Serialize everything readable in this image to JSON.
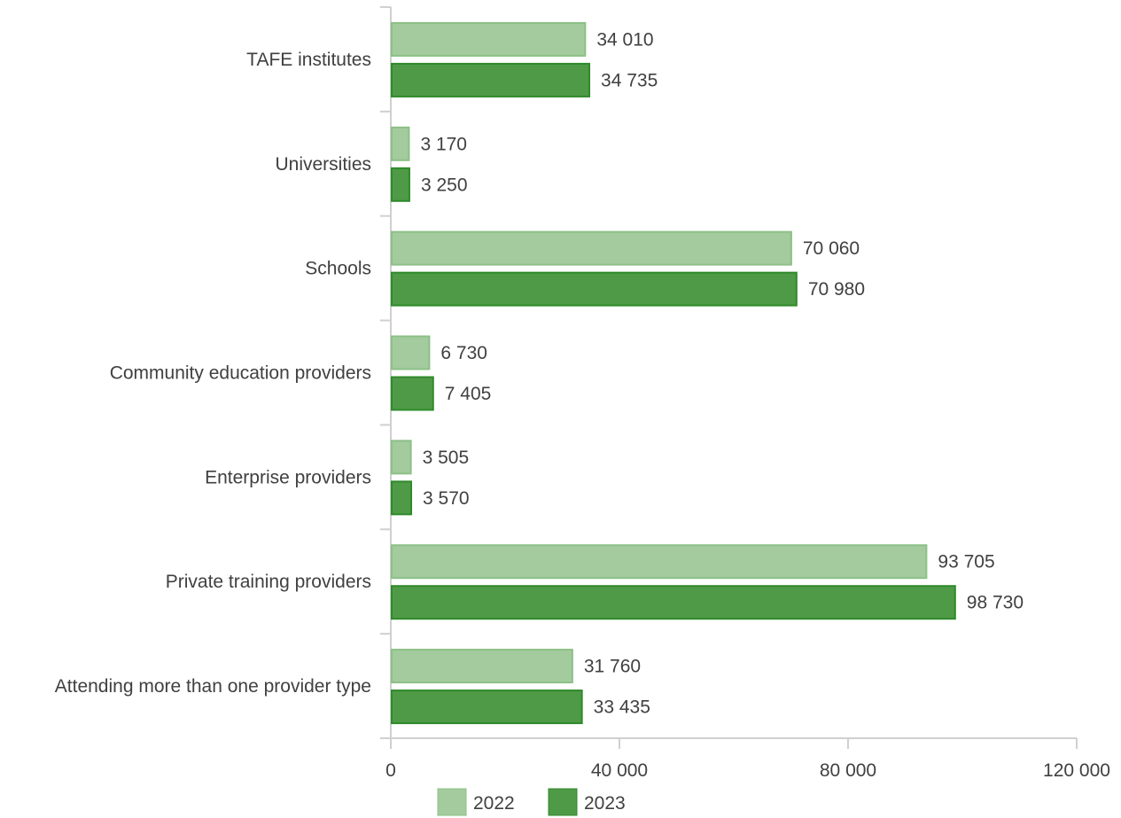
{
  "chart_data": {
    "type": "bar",
    "orientation": "horizontal",
    "categories": [
      "TAFE institutes",
      "Universities",
      "Schools",
      "Community education providers",
      "Enterprise providers",
      "Private training providers",
      "Attending more than one provider type"
    ],
    "series": [
      {
        "name": "2022",
        "values": [
          34010,
          3170,
          70060,
          6730,
          3505,
          93705,
          31760
        ],
        "value_labels": [
          "34 010",
          "3 170",
          "70 060",
          "6 730",
          "3 505",
          "93 705",
          "31 760"
        ],
        "fill": "#a3cb9e",
        "stroke": "#8cc086"
      },
      {
        "name": "2023",
        "values": [
          34735,
          3250,
          70980,
          7405,
          3570,
          98730,
          33435
        ],
        "value_labels": [
          "34 735",
          "3 250",
          "70 980",
          "7 405",
          "3 570",
          "98 730",
          "33 435"
        ],
        "fill": "#4f9a47",
        "stroke": "#2f8a2a"
      }
    ],
    "x_ticks": [
      0,
      40000,
      80000,
      120000
    ],
    "x_tick_labels": [
      "0",
      "40 000",
      "80 000",
      "120 000"
    ],
    "xlim": [
      0,
      120000
    ],
    "grid": false,
    "legend_position": "bottom-center"
  }
}
